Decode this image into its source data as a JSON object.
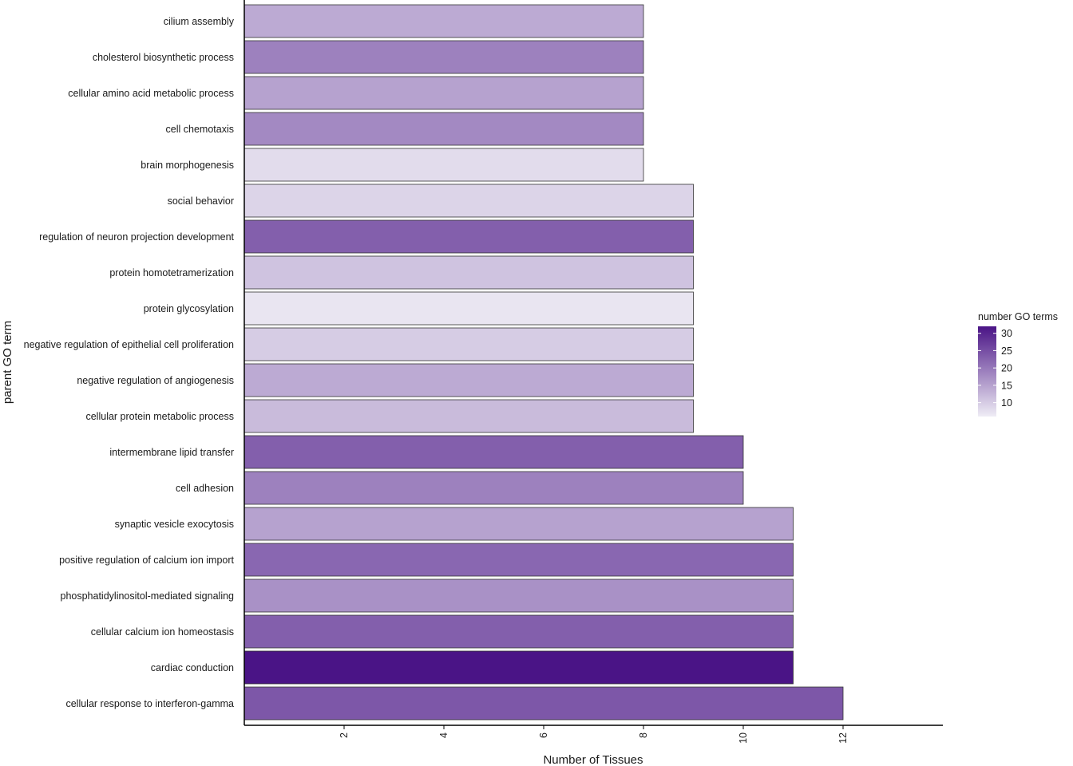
{
  "chart_data": {
    "type": "bar",
    "orientation": "horizontal",
    "xlabel": "Number of Tissues",
    "ylabel": "parent GO term",
    "xlim": [
      0,
      14
    ],
    "x_ticks": [
      "2",
      "4",
      "6",
      "8",
      "10",
      "12"
    ],
    "grid": false,
    "legend": {
      "title": "number GO terms",
      "placement": "right",
      "range": [
        6,
        32
      ],
      "ticks": [
        "10",
        "15",
        "20",
        "25",
        "30"
      ],
      "color_low": "#efedf5",
      "color_high": "#4a1486"
    },
    "categories": [
      "cilium assembly",
      "cholesterol biosynthetic process",
      "cellular amino acid metabolic process",
      "cell chemotaxis",
      "brain morphogenesis",
      "social behavior",
      "regulation of neuron projection development",
      "protein homotetramerization",
      "protein glycosylation",
      "negative regulation of epithelial cell proliferation",
      "negative regulation of angiogenesis",
      "cellular protein metabolic process",
      "intermembrane lipid transfer",
      "cell adhesion",
      "synaptic vesicle exocytosis",
      "positive regulation of calcium ion import",
      "phosphatidylinositol-mediated signaling",
      "cellular calcium ion homeostasis",
      "cardiac conduction",
      "cellular response to interferon-gamma"
    ],
    "values": [
      8,
      8,
      8,
      8,
      8,
      9,
      9,
      9,
      9,
      9,
      9,
      9,
      10,
      10,
      11,
      11,
      11,
      11,
      11,
      12
    ],
    "fill_values": [
      14,
      19,
      15,
      18,
      8,
      9,
      23,
      11,
      7,
      10,
      14,
      12,
      23,
      19,
      15,
      22,
      17,
      23,
      32,
      24
    ]
  }
}
